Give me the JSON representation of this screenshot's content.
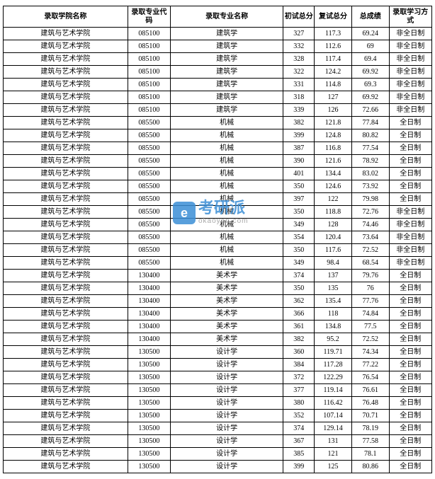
{
  "table": {
    "headers": {
      "college": "录取学院名称",
      "code": "录取专业代码",
      "major": "录取专业名称",
      "score1": "初试总分",
      "score2": "复试总分",
      "total": "总成绩",
      "mode": "录取学习方式"
    },
    "rows": [
      {
        "college": "建筑与艺术学院",
        "code": "085100",
        "major": "建筑学",
        "s1": "327",
        "s2": "117.3",
        "total": "69.24",
        "mode": "非全日制"
      },
      {
        "college": "建筑与艺术学院",
        "code": "085100",
        "major": "建筑学",
        "s1": "332",
        "s2": "112.6",
        "total": "69",
        "mode": "非全日制"
      },
      {
        "college": "建筑与艺术学院",
        "code": "085100",
        "major": "建筑学",
        "s1": "328",
        "s2": "117.4",
        "total": "69.4",
        "mode": "非全日制"
      },
      {
        "college": "建筑与艺术学院",
        "code": "085100",
        "major": "建筑学",
        "s1": "322",
        "s2": "124.2",
        "total": "69.92",
        "mode": "非全日制"
      },
      {
        "college": "建筑与艺术学院",
        "code": "085100",
        "major": "建筑学",
        "s1": "331",
        "s2": "114.8",
        "total": "69.3",
        "mode": "非全日制"
      },
      {
        "college": "建筑与艺术学院",
        "code": "085100",
        "major": "建筑学",
        "s1": "318",
        "s2": "127",
        "total": "69.92",
        "mode": "非全日制"
      },
      {
        "college": "建筑与艺术学院",
        "code": "085100",
        "major": "建筑学",
        "s1": "339",
        "s2": "126",
        "total": "72.66",
        "mode": "非全日制"
      },
      {
        "college": "建筑与艺术学院",
        "code": "085500",
        "major": "机械",
        "s1": "382",
        "s2": "121.8",
        "total": "77.84",
        "mode": "全日制"
      },
      {
        "college": "建筑与艺术学院",
        "code": "085500",
        "major": "机械",
        "s1": "399",
        "s2": "124.8",
        "total": "80.82",
        "mode": "全日制"
      },
      {
        "college": "建筑与艺术学院",
        "code": "085500",
        "major": "机械",
        "s1": "387",
        "s2": "116.8",
        "total": "77.54",
        "mode": "全日制"
      },
      {
        "college": "建筑与艺术学院",
        "code": "085500",
        "major": "机械",
        "s1": "390",
        "s2": "121.6",
        "total": "78.92",
        "mode": "全日制"
      },
      {
        "college": "建筑与艺术学院",
        "code": "085500",
        "major": "机械",
        "s1": "401",
        "s2": "134.4",
        "total": "83.02",
        "mode": "全日制"
      },
      {
        "college": "建筑与艺术学院",
        "code": "085500",
        "major": "机械",
        "s1": "350",
        "s2": "124.6",
        "total": "73.92",
        "mode": "全日制"
      },
      {
        "college": "建筑与艺术学院",
        "code": "085500",
        "major": "机械",
        "s1": "397",
        "s2": "122",
        "total": "79.98",
        "mode": "全日制"
      },
      {
        "college": "建筑与艺术学院",
        "code": "085500",
        "major": "机械",
        "s1": "350",
        "s2": "118.8",
        "total": "72.76",
        "mode": "非全日制"
      },
      {
        "college": "建筑与艺术学院",
        "code": "085500",
        "major": "机械",
        "s1": "349",
        "s2": "128",
        "total": "74.46",
        "mode": "非全日制"
      },
      {
        "college": "建筑与艺术学院",
        "code": "085500",
        "major": "机械",
        "s1": "354",
        "s2": "120.4",
        "total": "73.64",
        "mode": "非全日制"
      },
      {
        "college": "建筑与艺术学院",
        "code": "085500",
        "major": "机械",
        "s1": "350",
        "s2": "117.6",
        "total": "72.52",
        "mode": "非全日制"
      },
      {
        "college": "建筑与艺术学院",
        "code": "085500",
        "major": "机械",
        "s1": "349",
        "s2": "98.4",
        "total": "68.54",
        "mode": "非全日制"
      },
      {
        "college": "建筑与艺术学院",
        "code": "130400",
        "major": "美术学",
        "s1": "374",
        "s2": "137",
        "total": "79.76",
        "mode": "全日制"
      },
      {
        "college": "建筑与艺术学院",
        "code": "130400",
        "major": "美术学",
        "s1": "350",
        "s2": "135",
        "total": "76",
        "mode": "全日制"
      },
      {
        "college": "建筑与艺术学院",
        "code": "130400",
        "major": "美术学",
        "s1": "362",
        "s2": "135.4",
        "total": "77.76",
        "mode": "全日制"
      },
      {
        "college": "建筑与艺术学院",
        "code": "130400",
        "major": "美术学",
        "s1": "366",
        "s2": "118",
        "total": "74.84",
        "mode": "全日制"
      },
      {
        "college": "建筑与艺术学院",
        "code": "130400",
        "major": "美术学",
        "s1": "361",
        "s2": "134.8",
        "total": "77.5",
        "mode": "全日制"
      },
      {
        "college": "建筑与艺术学院",
        "code": "130400",
        "major": "美术学",
        "s1": "382",
        "s2": "95.2",
        "total": "72.52",
        "mode": "全日制"
      },
      {
        "college": "建筑与艺术学院",
        "code": "130500",
        "major": "设计学",
        "s1": "360",
        "s2": "119.71",
        "total": "74.34",
        "mode": "全日制"
      },
      {
        "college": "建筑与艺术学院",
        "code": "130500",
        "major": "设计学",
        "s1": "384",
        "s2": "117.28",
        "total": "77.22",
        "mode": "全日制"
      },
      {
        "college": "建筑与艺术学院",
        "code": "130500",
        "major": "设计学",
        "s1": "372",
        "s2": "122.29",
        "total": "76.54",
        "mode": "全日制"
      },
      {
        "college": "建筑与艺术学院",
        "code": "130500",
        "major": "设计学",
        "s1": "377",
        "s2": "119.14",
        "total": "76.61",
        "mode": "全日制"
      },
      {
        "college": "建筑与艺术学院",
        "code": "130500",
        "major": "设计学",
        "s1": "380",
        "s2": "116.42",
        "total": "76.48",
        "mode": "全日制"
      },
      {
        "college": "建筑与艺术学院",
        "code": "130500",
        "major": "设计学",
        "s1": "352",
        "s2": "107.14",
        "total": "70.71",
        "mode": "全日制"
      },
      {
        "college": "建筑与艺术学院",
        "code": "130500",
        "major": "设计学",
        "s1": "374",
        "s2": "129.14",
        "total": "78.19",
        "mode": "全日制"
      },
      {
        "college": "建筑与艺术学院",
        "code": "130500",
        "major": "设计学",
        "s1": "367",
        "s2": "131",
        "total": "77.58",
        "mode": "全日制"
      },
      {
        "college": "建筑与艺术学院",
        "code": "130500",
        "major": "设计学",
        "s1": "385",
        "s2": "121",
        "total": "78.1",
        "mode": "全日制"
      },
      {
        "college": "建筑与艺术学院",
        "code": "130500",
        "major": "设计学",
        "s1": "399",
        "s2": "125",
        "total": "80.86",
        "mode": "全日制"
      }
    ]
  },
  "watermark": {
    "icon_text": "e",
    "title": "考研派",
    "url": "okaoyan.com",
    "icon_bg_color": "#3b8fd6",
    "title_color": "#3b8fd6",
    "url_color": "#999999"
  }
}
